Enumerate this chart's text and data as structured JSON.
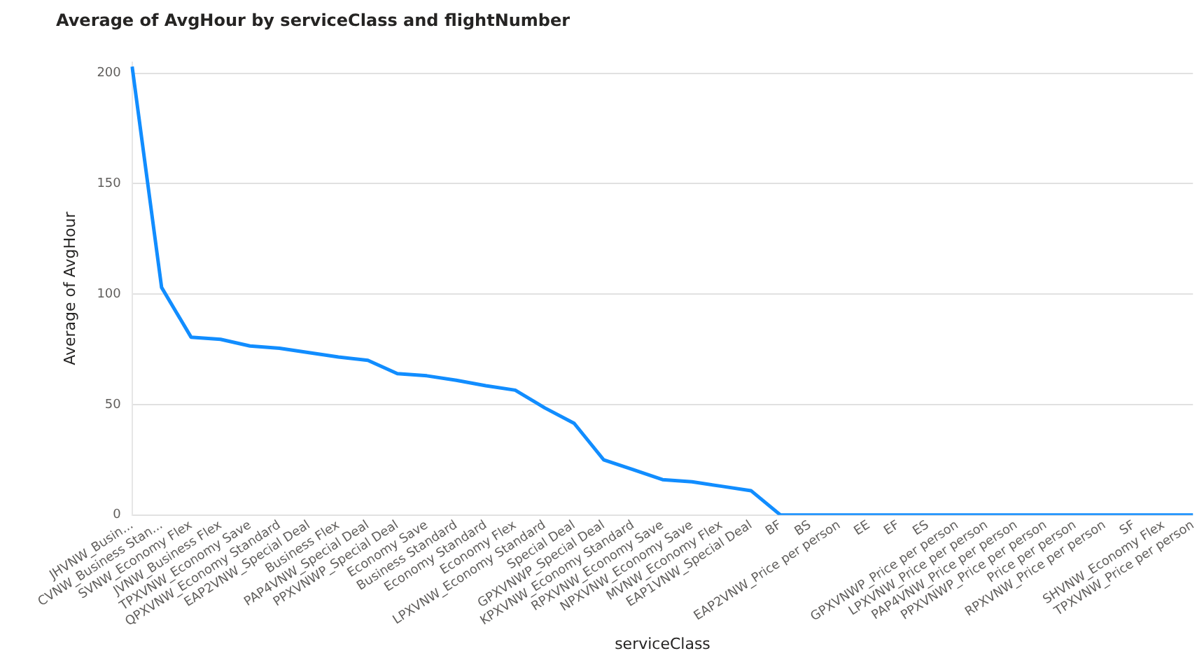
{
  "chart_data": {
    "type": "line",
    "title": "Average of AvgHour by serviceClass and flightNumber",
    "xlabel": "serviceClass",
    "ylabel": "Average of AvgHour",
    "categories": [
      "JHVNW_Busin...",
      "CVNW_Business Stan...",
      "SVNW_Economy Flex",
      "JVNW_Business Flex",
      "TPXVNW_Economy Save",
      "QPXVNW_Economy Standard",
      "EAP2VNW_Special Deal",
      "Business Flex",
      "PAP4VNW_Special Deal",
      "PPXVNWP_Special Deal",
      "Economy Save",
      "Business Standard",
      "Economy Standard",
      "Economy Flex",
      "LPXVNW_Economy Standard",
      "Special Deal",
      "GPXVNWP_Special Deal",
      "KPXVNW_Economy Standard",
      "RPXVNW_Economy Save",
      "NPXVNW_Economy Save",
      "MVNW_Economy Flex",
      "EAP1VNW_Special Deal",
      "BF",
      "BS",
      "EAP2VNW_Price per person",
      "EE",
      "EF",
      "ES",
      "GPXVNWP_Price per person",
      "LPXVNW_Price per person",
      "PAP4VNW_Price per person",
      "PPXVNWP_Price per person",
      "Price per person",
      "RPXVNW_Price per person",
      "SF",
      "SHVNW_Economy Flex",
      "TPXVNW_Price per person"
    ],
    "series": [
      {
        "color": "#118dff",
        "values": [
          203,
          103,
          80.5,
          79.5,
          76.5,
          75.5,
          73.5,
          71.5,
          70,
          64,
          63,
          61,
          58.5,
          56.5,
          48.5,
          41.5,
          25,
          20.5,
          16,
          15,
          13,
          11,
          0,
          0,
          0,
          0,
          0,
          0,
          0,
          0,
          0,
          0,
          0,
          0,
          0,
          0,
          0
        ]
      }
    ],
    "ylim": [
      0,
      205
    ],
    "yticks": [
      0,
      50,
      100,
      150,
      200
    ],
    "grid": "y",
    "legend": false,
    "marker": "none",
    "line_style": "solid"
  }
}
